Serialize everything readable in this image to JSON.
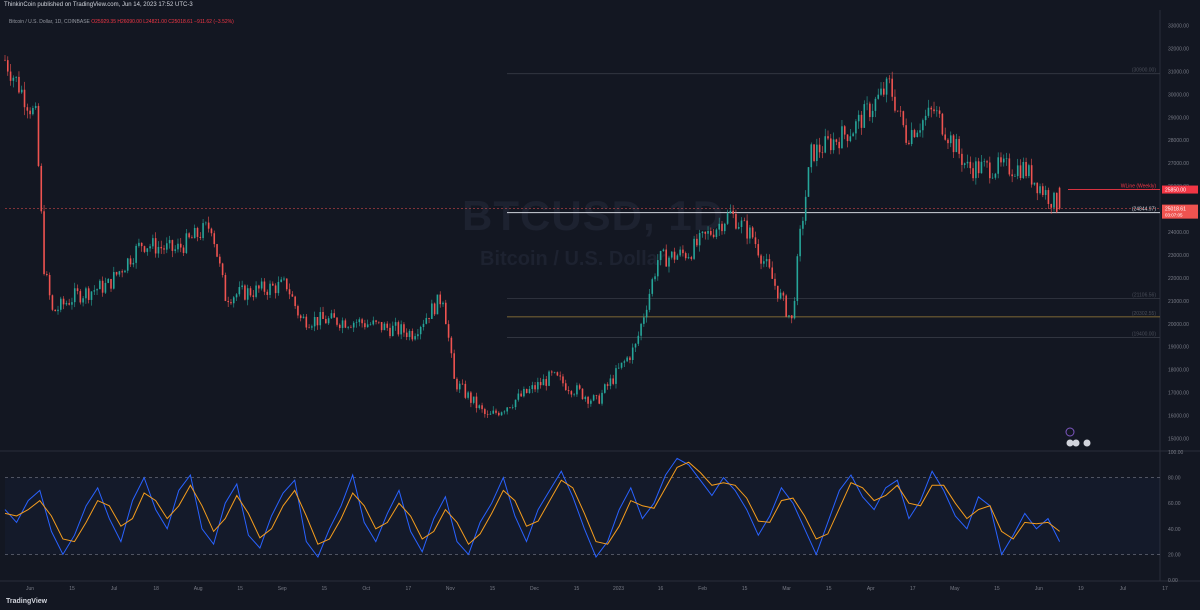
{
  "header": {
    "published": "ThinkinCoin published on TradingView.com, Jun 14, 2023 17:52 UTC-3",
    "symbol": "Bitcoin / U.S. Dollar, 1D, COINBASE",
    "ohlc": "O25929.35 H26090.00 L24821.00 C25018.61 −911.62 (−3.52%)"
  },
  "watermark": {
    "symbol": "BTCUSD, 1D",
    "name": "Bitcoin / U.S. Dollar"
  },
  "footer": {
    "logo": "TradingView"
  },
  "colors": {
    "background": "#131722",
    "up": "#26a69a",
    "down": "#ef5350",
    "stoch_k": "#2962ff",
    "stoch_d": "#f59d1d",
    "wline": "#f23645"
  },
  "chart_data": [
    {
      "type": "candlestick",
      "title": "Bitcoin / U.S. Dollar, 1D, COINBASE",
      "x_axis": {
        "tick_labels": [
          "Jun",
          "15",
          "Jul",
          "18",
          "Aug",
          "15",
          "Sep",
          "15",
          "Oct",
          "17",
          "Nov",
          "15",
          "Dec",
          "15",
          "2023",
          "16",
          "Feb",
          "15",
          "Mar",
          "15",
          "Apr",
          "17",
          "May",
          "15",
          "Jun",
          "19",
          "Jul",
          "17"
        ],
        "range": [
          "2022-06-01",
          "2023-07-20"
        ]
      },
      "y_axis": {
        "range": [
          14500,
          33500
        ],
        "tick_labels": [
          "15000.00",
          "16000.00",
          "17000.00",
          "18000.00",
          "19000.00",
          "20000.00",
          "21000.00",
          "22000.00",
          "23000.00",
          "24000.00",
          "25000.00",
          "26000.00",
          "27000.00",
          "28000.00",
          "29000.00",
          "30000.00",
          "31000.00",
          "32000.00",
          "33000.00"
        ],
        "ticks": [
          15000,
          16000,
          17000,
          18000,
          19000,
          20000,
          21000,
          22000,
          23000,
          24000,
          25000,
          26000,
          27000,
          28000,
          29000,
          30000,
          31000,
          32000,
          33000
        ]
      },
      "grid": false,
      "anchors": {
        "dates": [
          "2022-06-01",
          "2022-06-12",
          "2022-06-15",
          "2022-06-18",
          "2022-06-26",
          "2022-07-08",
          "2022-07-20",
          "2022-08-01",
          "2022-08-14",
          "2022-08-19",
          "2022-09-10",
          "2022-09-15",
          "2022-10-05",
          "2022-10-25",
          "2022-11-05",
          "2022-11-09",
          "2022-11-21",
          "2022-12-14",
          "2022-12-30",
          "2023-01-13",
          "2023-01-21",
          "2023-02-01",
          "2023-02-16",
          "2023-02-24",
          "2023-03-10",
          "2023-03-13",
          "2023-03-17",
          "2023-04-01",
          "2023-04-14",
          "2023-04-20",
          "2023-04-30",
          "2023-05-12",
          "2023-06-01",
          "2023-06-14"
        ],
        "close": [
          31500,
          29000,
          22500,
          20500,
          21200,
          21700,
          23500,
          23200,
          24300,
          21200,
          21700,
          20200,
          20100,
          19600,
          21200,
          17500,
          15900,
          17700,
          16600,
          19000,
          22800,
          23100,
          24800,
          23800,
          20100,
          23800,
          27400,
          28500,
          30400,
          28200,
          29300,
          26800,
          26800,
          25018.61
        ]
      },
      "horizontal_levels": [
        {
          "value": 30900,
          "label": "(30900.00)"
        },
        {
          "value": 25850,
          "label": "WLine (Weekly)",
          "price_label": "25850.00"
        },
        {
          "value": 24844.97,
          "label": "(24844.97)"
        },
        {
          "value": 21106.56,
          "label": "(21106.56)"
        },
        {
          "value": 20302.55,
          "label": "(20302.55)"
        },
        {
          "value": 19400,
          "label": "(19400.00)"
        }
      ],
      "last_price": {
        "value": 25018.61,
        "label": "25018.61",
        "countdown": "03:07:05"
      }
    },
    {
      "type": "line",
      "title": "",
      "y_axis": {
        "range": [
          0,
          100
        ],
        "tick_labels": [
          "100.00",
          "80.00",
          "60.00",
          "40.00",
          "20.00",
          "0.00"
        ],
        "ticks": [
          100,
          80,
          60,
          40,
          20,
          0
        ]
      },
      "bands": [
        80,
        20
      ],
      "series": [
        {
          "color": "#2962ff",
          "values": [
            55,
            45,
            62,
            70,
            38,
            20,
            35,
            58,
            72,
            48,
            30,
            62,
            80,
            55,
            40,
            70,
            82,
            40,
            28,
            60,
            75,
            35,
            25,
            50,
            68,
            78,
            30,
            18,
            40,
            58,
            82,
            45,
            30,
            52,
            70,
            38,
            22,
            48,
            65,
            30,
            20,
            45,
            60,
            80,
            50,
            30,
            55,
            70,
            85,
            65,
            40,
            18,
            30,
            55,
            72,
            48,
            60,
            82,
            95,
            90,
            78,
            66,
            80,
            70,
            55,
            35,
            50,
            72,
            60,
            40,
            20,
            45,
            70,
            82,
            65,
            55,
            72,
            78,
            48,
            62,
            85,
            70,
            50,
            40,
            65,
            58,
            20,
            35,
            52,
            40,
            48,
            30
          ]
        },
        {
          "color": "#f59d1d",
          "values": [
            52,
            50,
            55,
            62,
            50,
            32,
            30,
            45,
            62,
            58,
            42,
            48,
            68,
            62,
            48,
            58,
            74,
            58,
            38,
            48,
            66,
            52,
            33,
            40,
            58,
            70,
            50,
            28,
            32,
            48,
            68,
            58,
            40,
            45,
            60,
            50,
            32,
            38,
            55,
            45,
            28,
            36,
            52,
            70,
            62,
            42,
            46,
            62,
            78,
            72,
            52,
            30,
            28,
            42,
            62,
            58,
            56,
            72,
            88,
            92,
            84,
            74,
            76,
            74,
            64,
            46,
            45,
            62,
            64,
            50,
            32,
            36,
            56,
            76,
            72,
            62,
            66,
            74,
            60,
            58,
            74,
            74,
            60,
            48,
            55,
            58,
            38,
            32,
            45,
            44,
            45,
            38
          ]
        }
      ]
    }
  ]
}
